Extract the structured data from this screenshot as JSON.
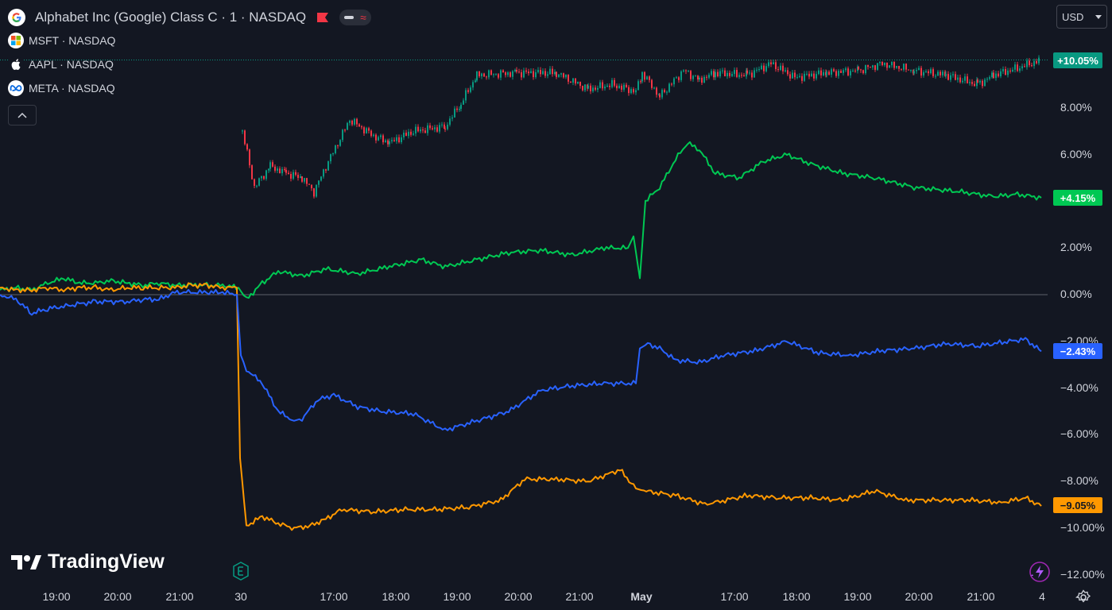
{
  "legend": {
    "main_symbol": "Alphabet Inc (Google) Class C · 1 · NASDAQ",
    "compare": [
      {
        "label": "MSFT · NASDAQ",
        "icon": "microsoft-logo-icon"
      },
      {
        "label": "AAPL · NASDAQ",
        "icon": "apple-logo-icon"
      },
      {
        "label": "META · NASDAQ",
        "icon": "meta-logo-icon"
      }
    ]
  },
  "currency": {
    "label": "USD"
  },
  "y_axis": {
    "ticks": [
      "8.00%",
      "6.00%",
      "2.00%",
      "0.00%",
      "−2.00%",
      "−4.00%",
      "−6.00%",
      "−8.00%",
      "−10.00%",
      "−12.00%"
    ]
  },
  "x_axis": {
    "ticks": [
      "19:00",
      "20:00",
      "21:00",
      "30",
      "17:00",
      "18:00",
      "19:00",
      "20:00",
      "21:00",
      "May",
      "17:00",
      "18:00",
      "19:00",
      "20:00",
      "21:00",
      "4"
    ]
  },
  "price_tags": [
    {
      "label": "+10.05%",
      "color": "#089981"
    },
    {
      "label": "+4.15%",
      "color": "#00c853"
    },
    {
      "label": "−2.43%",
      "color": "#2962ff"
    },
    {
      "label": "−9.05%",
      "color": "#ff9800"
    }
  ],
  "branding": {
    "name": "TradingView"
  },
  "colors": {
    "background": "#131722",
    "up_candle": "#089981",
    "down_candle": "#f23645",
    "msft": "#00c853",
    "aapl": "#ff9800",
    "meta": "#2962ff"
  },
  "chart_data": {
    "type": "line",
    "y_unit": "%",
    "ylim": [
      -12,
      10.5
    ],
    "series": [
      {
        "name": "MSFT · NASDAQ",
        "color": "#00c853",
        "x": [
          0,
          20,
          40,
          60,
          80,
          100,
          120,
          140,
          160,
          180,
          200,
          220,
          240,
          260,
          280,
          300,
          310,
          330,
          350,
          380,
          410,
          450,
          490,
          530,
          560,
          600,
          640,
          680,
          720,
          760,
          790,
          797,
          805,
          812,
          830,
          850,
          865,
          880,
          900,
          930,
          960,
          990,
          1020,
          1060,
          1100,
          1150,
          1180,
          1210,
          1250,
          1280,
          1310
        ],
        "y": [
          0.2,
          0.3,
          0.2,
          0.5,
          0.7,
          0.5,
          0.5,
          0.6,
          0.5,
          0.4,
          0.5,
          0.4,
          0.4,
          0.4,
          0.4,
          0.3,
          -0.2,
          0.5,
          1.0,
          0.8,
          1.1,
          0.9,
          1.2,
          1.5,
          1.2,
          1.5,
          1.8,
          1.9,
          1.7,
          2.0,
          2.0,
          2.5,
          0.7,
          4.0,
          4.6,
          5.8,
          6.5,
          6.2,
          5.2,
          5.0,
          5.7,
          6.0,
          5.6,
          5.2,
          5.0,
          4.6,
          4.5,
          4.4,
          4.2,
          4.3,
          4.15
        ]
      },
      {
        "name": "AAPL · NASDAQ",
        "color": "#ff9800",
        "x": [
          0,
          20,
          40,
          60,
          80,
          100,
          120,
          140,
          160,
          180,
          200,
          220,
          240,
          260,
          280,
          298,
          302,
          310,
          330,
          350,
          370,
          390,
          410,
          430,
          470,
          510,
          550,
          590,
          630,
          660,
          700,
          740,
          780,
          800,
          810,
          850,
          890,
          900,
          940,
          980,
          1020,
          1060,
          1100,
          1140,
          1180,
          1220,
          1260,
          1290,
          1310
        ],
        "y": [
          0.3,
          0.2,
          0.2,
          0.3,
          0.2,
          0.3,
          0.3,
          0.2,
          0.3,
          0.3,
          0.3,
          0.3,
          0.4,
          0.4,
          0.3,
          0.3,
          -7.0,
          -9.9,
          -9.5,
          -9.8,
          -10.0,
          -9.9,
          -9.6,
          -9.2,
          -9.3,
          -9.2,
          -9.2,
          -9.1,
          -8.8,
          -7.9,
          -7.9,
          -8.0,
          -7.5,
          -8.3,
          -8.4,
          -8.6,
          -9.0,
          -8.9,
          -8.6,
          -8.7,
          -8.7,
          -8.8,
          -8.4,
          -8.8,
          -8.8,
          -8.8,
          -8.9,
          -8.7,
          -9.05
        ]
      },
      {
        "name": "META · NASDAQ",
        "color": "#2962ff",
        "x": [
          0,
          20,
          40,
          60,
          80,
          100,
          120,
          140,
          160,
          180,
          200,
          220,
          240,
          260,
          280,
          298,
          303,
          310,
          330,
          350,
          370,
          380,
          400,
          420,
          450,
          480,
          520,
          560,
          600,
          640,
          680,
          720,
          760,
          800,
          805,
          815,
          830,
          850,
          880,
          910,
          950,
          990,
          1030,
          1070,
          1110,
          1150,
          1190,
          1230,
          1270,
          1290,
          1310
        ],
        "y": [
          0.0,
          -0.2,
          -0.8,
          -0.6,
          -0.5,
          -0.4,
          -0.3,
          -0.3,
          -0.3,
          -0.2,
          -0.2,
          0.1,
          0.1,
          0.1,
          0.1,
          0.0,
          -2.6,
          -3.2,
          -3.8,
          -5.0,
          -5.4,
          -5.3,
          -4.5,
          -4.3,
          -4.8,
          -5.0,
          -5.1,
          -5.8,
          -5.4,
          -5.0,
          -4.1,
          -3.9,
          -3.8,
          -3.8,
          -2.3,
          -2.1,
          -2.3,
          -2.8,
          -2.9,
          -2.6,
          -2.4,
          -2.0,
          -2.5,
          -2.6,
          -2.4,
          -2.3,
          -2.1,
          -2.2,
          -2.0,
          -1.9,
          -2.43
        ]
      }
    ],
    "candles": {
      "name": "Alphabet Inc (Google) Class C",
      "up_color": "#089981",
      "down_color": "#f23645",
      "x": [
        305,
        320,
        340,
        360,
        380,
        395,
        410,
        440,
        470,
        490,
        520,
        560,
        580,
        600,
        650,
        700,
        740,
        770,
        800,
        808,
        830,
        860,
        880,
        900,
        940,
        970,
        1000,
        1040,
        1080,
        1110,
        1150,
        1190,
        1230,
        1250,
        1280,
        1310
      ],
      "y": [
        7.0,
        4.6,
        5.5,
        5.2,
        5.0,
        4.4,
        5.5,
        7.5,
        6.8,
        6.5,
        7.0,
        7.2,
        8.2,
        9.4,
        9.5,
        9.5,
        8.8,
        9.0,
        8.7,
        9.5,
        8.5,
        9.6,
        9.2,
        9.5,
        9.4,
        9.9,
        9.3,
        9.5,
        9.6,
        9.9,
        9.6,
        9.4,
        9.0,
        9.4,
        9.7,
        10.05
      ]
    }
  }
}
